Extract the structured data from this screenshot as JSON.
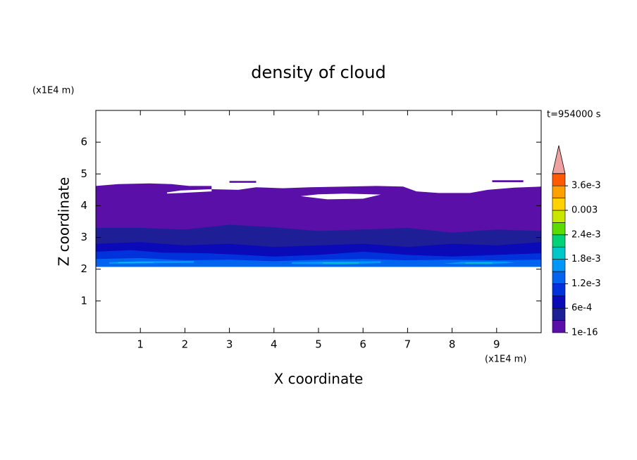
{
  "chart_data": {
    "type": "contour",
    "title": "density of cloud",
    "annotation": "t=954000 s",
    "xlabel": "X coordinate",
    "ylabel": "Z coordinate",
    "xunit": "(x1E4 m)",
    "yunit": "(x1E4 m)",
    "xlim": [
      0,
      10
    ],
    "ylim": [
      0,
      7
    ],
    "xticks": [
      1,
      2,
      3,
      4,
      5,
      6,
      7,
      8,
      9
    ],
    "yticks": [
      1,
      2,
      3,
      4,
      5,
      6
    ],
    "colorbar": {
      "levels": [
        1e-16,
        0.0003,
        0.0006,
        0.0009,
        0.0012,
        0.0015,
        0.0018,
        0.0021,
        0.0024,
        0.0027,
        0.003,
        0.0033,
        0.0036,
        0.0039
      ],
      "colors": [
        "#5a0fa8",
        "#1e1e96",
        "#0a0ab9",
        "#0032dc",
        "#0064f0",
        "#0096f5",
        "#00c8c8",
        "#00d278",
        "#5adc00",
        "#c8e600",
        "#ffd200",
        "#ffa000",
        "#ff5a00",
        "#f0a0a0"
      ],
      "ticks": [
        {
          "value": 1e-16,
          "label": "1e-16"
        },
        {
          "value": 0.0006,
          "label": "6e-4"
        },
        {
          "value": 0.0012,
          "label": "1.2e-3"
        },
        {
          "value": 0.0018,
          "label": "1.8e-3"
        },
        {
          "value": 0.0024,
          "label": "2.4e-3"
        },
        0.003,
        {
          "value": 0.0036,
          "label": "3.6e-3"
        }
      ]
    }
  }
}
